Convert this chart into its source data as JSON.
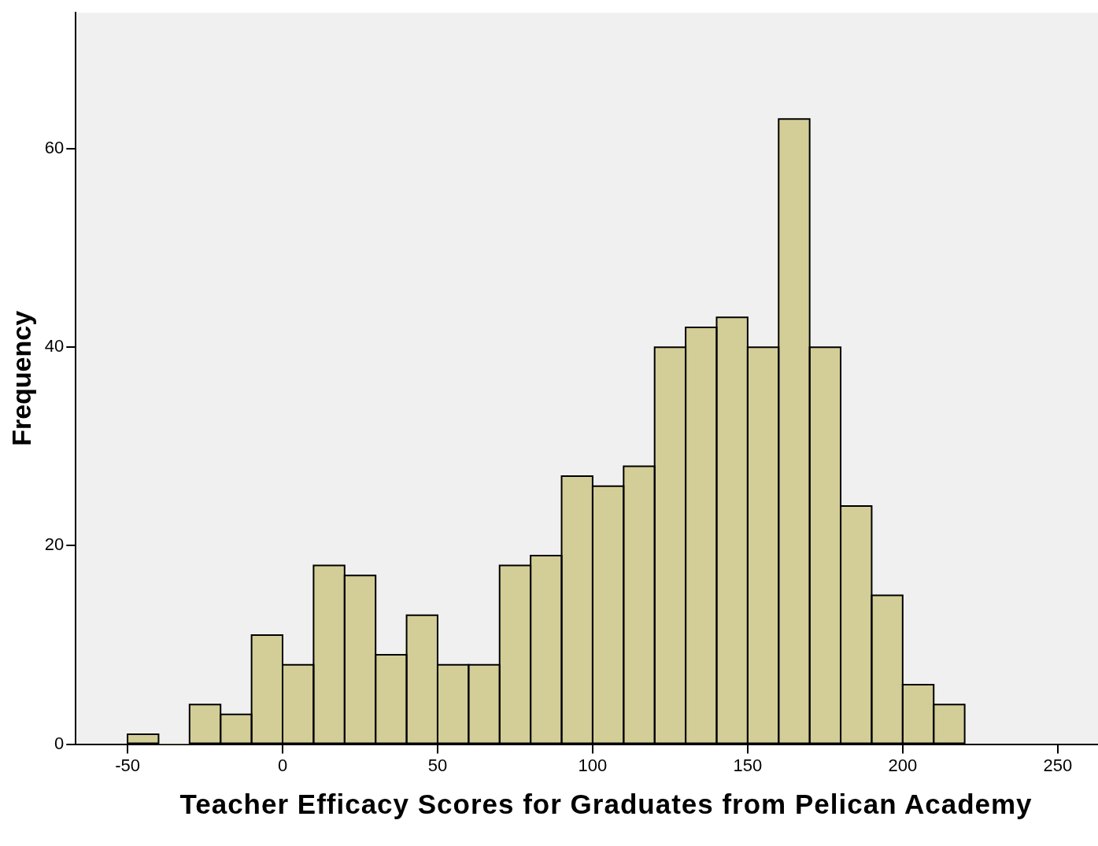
{
  "chart_data": {
    "type": "histogram",
    "xlabel": "Teacher Efficacy Scores for Graduates from Pelican Academy",
    "ylabel": "Frequency",
    "bins": [
      -50,
      -40,
      -30,
      -20,
      -10,
      0,
      10,
      20,
      30,
      40,
      50,
      60,
      70,
      80,
      90,
      100,
      110,
      120,
      130,
      140,
      150,
      160,
      170,
      180,
      190,
      200,
      210,
      220
    ],
    "values": [
      1,
      0,
      4,
      3,
      11,
      8,
      18,
      17,
      9,
      13,
      8,
      8,
      18,
      19,
      27,
      26,
      28,
      40,
      42,
      43,
      40,
      63,
      40,
      24,
      15,
      6,
      4
    ],
    "color": "#d3ce97",
    "xlim": [
      -66.7,
      263
    ],
    "xticks": [
      -50,
      0,
      50,
      100,
      150,
      200,
      250
    ],
    "ylim": [
      0,
      73.7
    ],
    "yticks": [
      0,
      20,
      40,
      60
    ],
    "grid": false,
    "legend": false
  }
}
